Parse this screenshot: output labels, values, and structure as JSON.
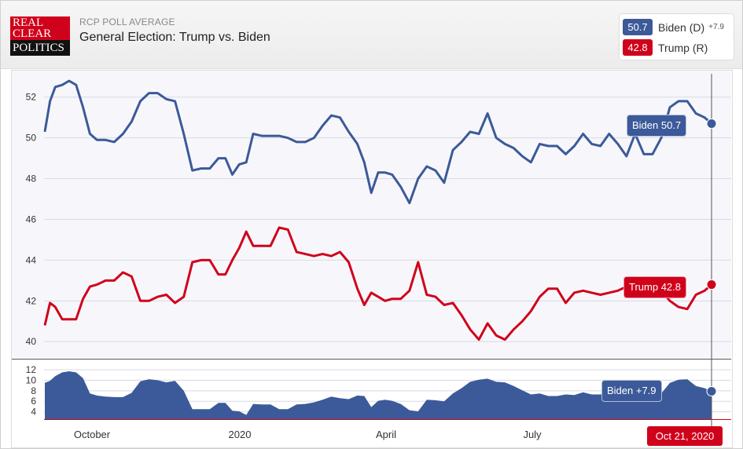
{
  "header": {
    "logo": [
      "REAL",
      "CLEAR",
      "POLITICS"
    ],
    "subtitle": "RCP POLL AVERAGE",
    "title": "General Election: Trump vs. Biden"
  },
  "legend": [
    {
      "value": "50.7",
      "name": "Biden (D)",
      "spread": "+7.9",
      "color": "#3c5a99"
    },
    {
      "value": "42.8",
      "name": "Trump (R)",
      "spread": "",
      "color": "#d0021b"
    }
  ],
  "flags": {
    "biden": "Biden 50.7",
    "trump": "Trump 42.8",
    "spread": "Biden +7.9",
    "date": "Oct 21, 2020"
  },
  "chart_data": [
    {
      "type": "line",
      "x": [
        0,
        3,
        6,
        10,
        14,
        18,
        22,
        26,
        30,
        35,
        40,
        45,
        50,
        55,
        60,
        65,
        70,
        75,
        80,
        85,
        90,
        95,
        100,
        104,
        108,
        112,
        116,
        120,
        125,
        130,
        135,
        140,
        145,
        150,
        155,
        160,
        165,
        170,
        175,
        180,
        184,
        188,
        192,
        196,
        200,
        205,
        210,
        215,
        220,
        225,
        230,
        235,
        240,
        245,
        250,
        255,
        260,
        265,
        270,
        275,
        280,
        285,
        290,
        295,
        300,
        305,
        310,
        315,
        320,
        325,
        330,
        335,
        340,
        345,
        350,
        355,
        360,
        365,
        370,
        375,
        380,
        384
      ],
      "xticks": [
        "October",
        "2020",
        "April",
        "July"
      ],
      "series": [
        {
          "name": "Biden",
          "color": "#3c5a99",
          "values": [
            50.3,
            51.8,
            52.5,
            52.6,
            52.8,
            52.6,
            51.5,
            50.2,
            49.9,
            49.9,
            49.8,
            50.2,
            50.8,
            51.8,
            52.2,
            52.2,
            51.9,
            51.8,
            50.2,
            48.4,
            48.5,
            48.5,
            49.0,
            49.0,
            48.2,
            48.7,
            48.8,
            50.2,
            50.1,
            50.1,
            50.1,
            50.0,
            49.8,
            49.8,
            50.0,
            50.6,
            51.1,
            51.0,
            50.3,
            49.7,
            48.8,
            47.3,
            48.3,
            48.3,
            48.2,
            47.6,
            46.8,
            48.0,
            48.6,
            48.4,
            47.8,
            49.4,
            49.8,
            50.3,
            50.2,
            51.2,
            50.0,
            49.7,
            49.5,
            49.1,
            48.8,
            49.7,
            49.6,
            49.6,
            49.2,
            49.6,
            50.2,
            49.7,
            49.6,
            50.2,
            49.7,
            49.1,
            50.2,
            49.2,
            49.2,
            50.0,
            51.5,
            51.8,
            51.8,
            51.2,
            51.0,
            50.7
          ]
        },
        {
          "name": "Trump",
          "color": "#d0021b",
          "values": [
            40.8,
            41.9,
            41.7,
            41.1,
            41.1,
            41.1,
            42.1,
            42.7,
            42.8,
            43.0,
            43.0,
            43.4,
            43.2,
            42.0,
            42.0,
            42.2,
            42.3,
            41.9,
            42.2,
            43.9,
            44.0,
            44.0,
            43.3,
            43.3,
            44.0,
            44.6,
            45.4,
            44.7,
            44.7,
            44.7,
            45.6,
            45.5,
            44.4,
            44.3,
            44.2,
            44.3,
            44.2,
            44.4,
            43.9,
            42.6,
            41.8,
            42.4,
            42.2,
            42.0,
            42.1,
            42.1,
            42.5,
            43.9,
            42.3,
            42.2,
            41.8,
            41.9,
            41.3,
            40.6,
            40.1,
            40.9,
            40.3,
            40.1,
            40.6,
            41.0,
            41.5,
            42.2,
            42.6,
            42.6,
            41.9,
            42.4,
            42.5,
            42.4,
            42.3,
            42.4,
            42.5,
            42.7,
            42.6,
            42.6,
            42.8,
            42.5,
            42.0,
            41.7,
            41.6,
            42.3,
            42.5,
            42.8
          ]
        }
      ],
      "yticks": [
        40,
        42,
        44,
        46,
        48,
        50,
        52
      ],
      "ylim": [
        39.2,
        53.3
      ]
    },
    {
      "type": "area",
      "series": [
        {
          "name": "Biden +7.9",
          "color": "#3c5a99",
          "values": [
            9.5,
            9.9,
            10.8,
            11.5,
            11.7,
            11.5,
            10.4,
            7.5,
            7.1,
            6.9,
            6.8,
            6.8,
            7.6,
            9.8,
            10.2,
            10.0,
            9.6,
            9.9,
            8.0,
            4.5,
            4.5,
            4.5,
            5.7,
            5.7,
            4.2,
            4.1,
            3.4,
            5.5,
            5.4,
            5.4,
            4.5,
            4.5,
            5.4,
            5.5,
            5.8,
            6.3,
            6.9,
            6.6,
            6.4,
            7.1,
            7.0,
            4.9,
            6.1,
            6.3,
            6.1,
            5.5,
            4.3,
            4.1,
            6.3,
            6.2,
            6.0,
            7.5,
            8.5,
            9.7,
            10.1,
            10.3,
            9.7,
            9.6,
            8.9,
            8.1,
            7.3,
            7.5,
            7.0,
            7.0,
            7.3,
            7.2,
            7.7,
            7.3,
            7.3,
            7.8,
            7.2,
            6.4,
            7.6,
            6.6,
            6.4,
            7.5,
            9.5,
            10.1,
            10.2,
            8.9,
            8.5,
            7.9
          ]
        }
      ],
      "yticks": [
        4,
        6,
        8,
        10,
        12
      ],
      "ylim": [
        2.6,
        13.2
      ]
    }
  ]
}
